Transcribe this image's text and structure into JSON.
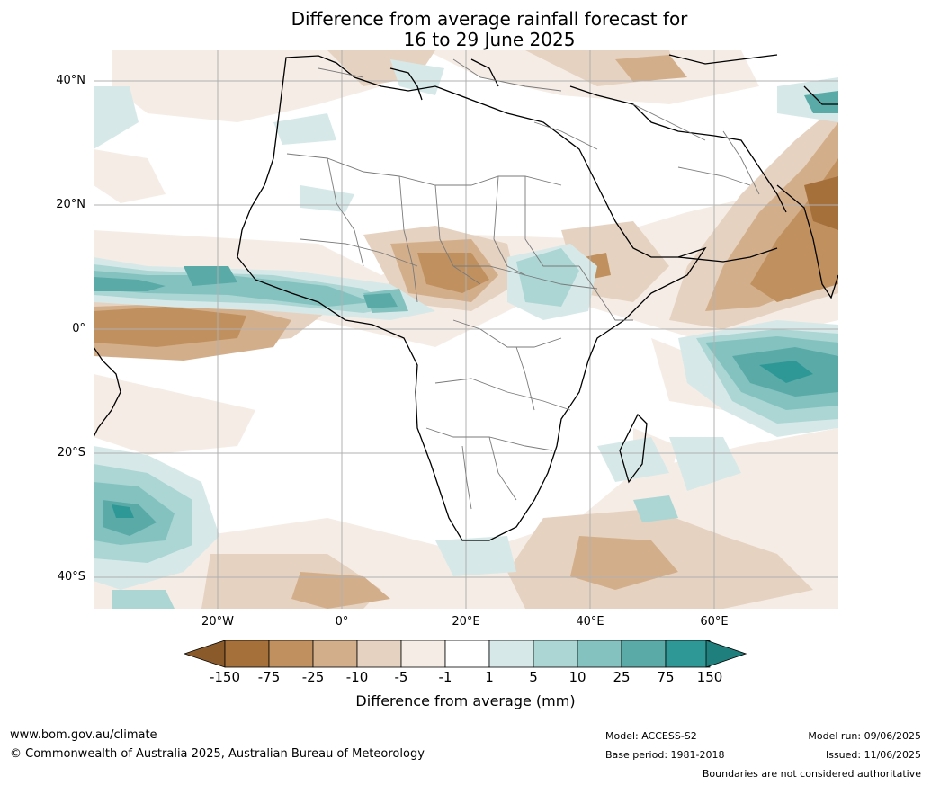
{
  "title": {
    "line1": "Difference from average rainfall forecast for",
    "line2": "16 to 29 June 2025"
  },
  "map": {
    "region": "Africa",
    "lat_labels": [
      "40°N",
      "20°N",
      "0°",
      "20°S",
      "40°S"
    ],
    "lon_labels": [
      "20°W",
      "0°",
      "20°E",
      "40°E",
      "60°E"
    ]
  },
  "colorbar": {
    "title": "Difference from average (mm)",
    "ticks": [
      "-150",
      "-75",
      "-25",
      "-10",
      "-5",
      "-1",
      "1",
      "5",
      "10",
      "25",
      "75",
      "150"
    ],
    "colors": [
      "#a6703b",
      "#c0915f",
      "#d3ae8a",
      "#e5d2c0",
      "#f5ece5",
      "#ffffff",
      "#d6e9e8",
      "#abd6d4",
      "#84c2c0",
      "#5aaaa8",
      "#2e9896"
    ],
    "under_color": "#8b5a2b",
    "over_color": "#1f7f7d"
  },
  "footer": {
    "website": "www.bom.gov.au/climate",
    "copyright": "© Commonwealth of Australia 2025, Australian Bureau of Meteorology",
    "model": "Model: ACCESS-S2",
    "base_period": "Base period: 1981-2018",
    "model_run": "Model run: 09/06/2025",
    "issued": "Issued: 11/06/2025",
    "disclaimer": "Boundaries are not considered authoritative"
  }
}
